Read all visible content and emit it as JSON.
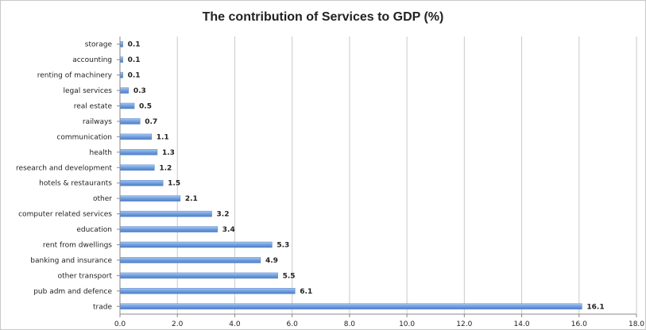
{
  "chart_data": {
    "type": "bar",
    "orientation": "horizontal",
    "title": "The contribution of Services to GDP (%)",
    "xlabel": "",
    "ylabel": "",
    "xlim": [
      0,
      18
    ],
    "x_ticks": [
      "0.0",
      "2.0",
      "4.0",
      "6.0",
      "8.0",
      "10.0",
      "12.0",
      "14.0",
      "16.0",
      "18.0"
    ],
    "grid": "vertical",
    "legend": "none",
    "bar_color": "#6f9ee0",
    "categories": [
      "storage",
      "accounting",
      "renting of machinery",
      "legal services",
      "real estate",
      "railways",
      "communication",
      "health",
      "research and development",
      "hotels & restaurants",
      "other",
      "computer related services",
      "education",
      "rent from dwellings",
      "banking and insurance",
      "other transport",
      "pub adm and defence",
      "trade"
    ],
    "values": [
      0.1,
      0.1,
      0.1,
      0.3,
      0.5,
      0.7,
      1.1,
      1.3,
      1.2,
      1.5,
      2.1,
      3.2,
      3.4,
      5.3,
      4.9,
      5.5,
      6.1,
      16.1
    ],
    "value_labels": [
      "0.1",
      "0.1",
      "0.1",
      "0.3",
      "0.5",
      "0.7",
      "1.1",
      "1.3",
      "1.2",
      "1.5",
      "2.1",
      "3.2",
      "3.4",
      "5.3",
      "4.9",
      "5.5",
      "6.1",
      "16.1"
    ]
  }
}
